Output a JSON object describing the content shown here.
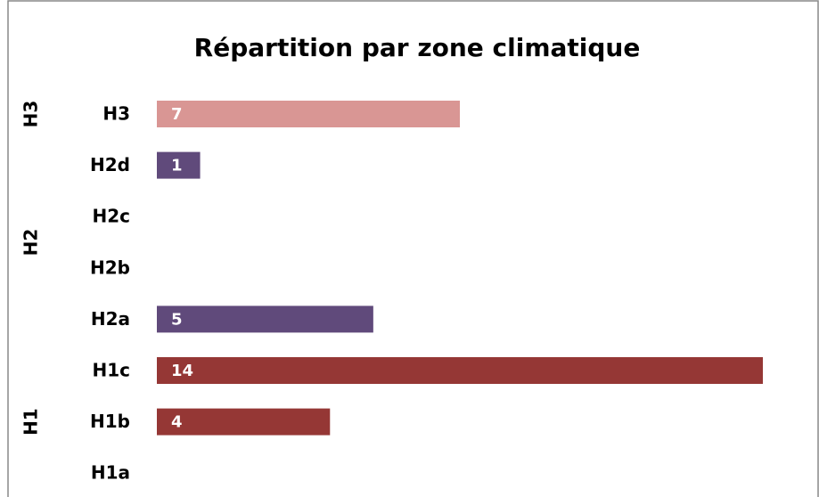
{
  "chart_data": {
    "type": "bar",
    "orientation": "horizontal",
    "title": "Répartition par zone climatique",
    "categories": [
      "H3",
      "H2d",
      "H2c",
      "H2b",
      "H2a",
      "H1c",
      "H1b",
      "H1a"
    ],
    "values": [
      7,
      1,
      0,
      0,
      5,
      14,
      4,
      0
    ],
    "colors": [
      "#d99694",
      "#604a7b",
      "#604a7b",
      "#604a7b",
      "#604a7b",
      "#953735",
      "#953735",
      "#953735"
    ],
    "groups": [
      {
        "label": "H3",
        "members": [
          "H3"
        ]
      },
      {
        "label": "H2",
        "members": [
          "H2d",
          "H2c",
          "H2b",
          "H2a"
        ]
      },
      {
        "label": "H1",
        "members": [
          "H1c",
          "H1b",
          "H1a"
        ]
      }
    ],
    "xlim": [
      0,
      14
    ]
  }
}
